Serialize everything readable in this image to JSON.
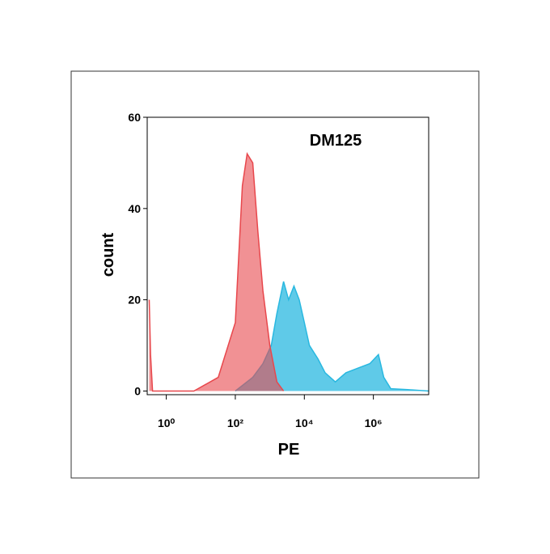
{
  "chart_data": {
    "type": "area",
    "title": "DM125",
    "xlabel": "PE",
    "ylabel": "count",
    "xscale": "log",
    "xlim": [
      0.28,
      40000000
    ],
    "ylim": [
      -0.8,
      60
    ],
    "xticks": [
      {
        "value": 1,
        "label": "10⁰"
      },
      {
        "value": 100,
        "label": "10²"
      },
      {
        "value": 10000,
        "label": "10⁴"
      },
      {
        "value": 1000000,
        "label": "10⁶"
      }
    ],
    "yticks": [
      0,
      20,
      40,
      60
    ],
    "series": [
      {
        "color": "#29b8e0",
        "x": [
          100,
          320,
          630,
          1100,
          1600,
          2500,
          3500,
          5000,
          7100,
          10000,
          14000,
          25000,
          40000,
          79000,
          160000,
          350000,
          790000,
          1400000,
          2000000,
          3200000,
          10000000,
          40000000
        ],
        "values": [
          0,
          3,
          6,
          10,
          17,
          24,
          20,
          23,
          20,
          15,
          10,
          7,
          4,
          2,
          4,
          5,
          6,
          8,
          3,
          0.5,
          0.3,
          0
        ]
      },
      {
        "color": "#e8474c",
        "x": [
          0.32,
          0.35,
          0.4,
          6.3,
          32,
          100,
          160,
          220,
          320,
          450,
          630,
          1000,
          1600,
          2500
        ],
        "values": [
          20,
          8,
          0,
          0,
          3,
          15,
          45,
          52,
          50,
          35,
          22,
          10,
          2,
          0
        ]
      }
    ]
  }
}
